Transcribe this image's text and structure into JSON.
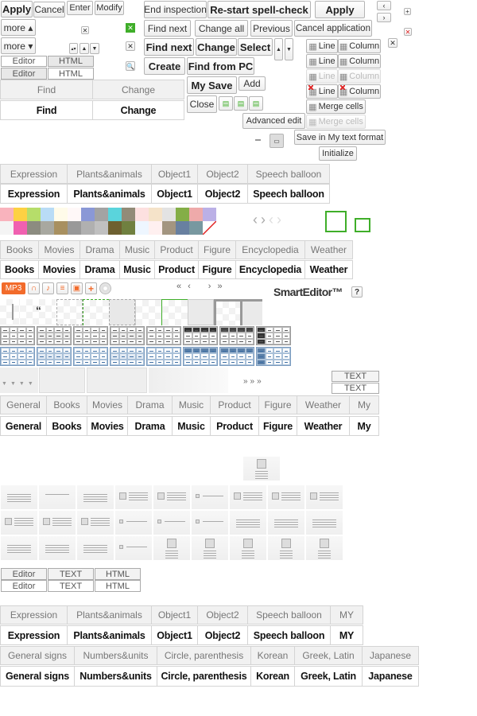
{
  "top_left": {
    "apply": "Apply",
    "cancel": "Cancel",
    "enter": "Enter",
    "modify": "Modify",
    "more_up": "more ▴",
    "more_down": "more ▾",
    "editor": "Editor",
    "html": "HTML"
  },
  "find_tabs": [
    "Find",
    "Change"
  ],
  "spell": {
    "end_inspection": "End inspection",
    "restart": "Re-start spell-check",
    "apply": "Apply",
    "find_next": "Find next",
    "change_all": "Change all",
    "previous": "Previous",
    "cancel_application": "Cancel application",
    "find_next_bold": "Find next",
    "change": "Change",
    "select": "Select",
    "create": "Create",
    "find_from_pc": "Find from PC",
    "my_save": "My Save",
    "add": "Add",
    "close": "Close",
    "advanced_edit": "Advanced edit",
    "save_my_format": "Save in My text format",
    "initialize": "Initialize"
  },
  "table_edit": {
    "line": "Line",
    "column": "Column",
    "merge_cells": "Merge cells"
  },
  "expression_tabs": [
    "Expression",
    "Plants&animals",
    "Object1",
    "Object2",
    "Speech balloon"
  ],
  "category_tabs": [
    "Books",
    "Movies",
    "Drama",
    "Music",
    "Product",
    "Figure",
    "Encyclopedia",
    "Weather"
  ],
  "media": {
    "mp3": "MP3",
    "logo": "SmartEditor™",
    "help": "?"
  },
  "pager": [
    "«",
    "‹",
    "›",
    "»"
  ],
  "text_buttons": [
    "TEXT",
    "TEXT"
  ],
  "general_tabs": [
    "General",
    "Books",
    "Movies",
    "Drama",
    "Music",
    "Product",
    "Figure",
    "Weather",
    "My"
  ],
  "mode_toggle": [
    "Editor",
    "TEXT",
    "HTML"
  ],
  "expression_tabs2": [
    "Expression",
    "Plants&animals",
    "Object1",
    "Object2",
    "Speech balloon",
    "MY"
  ],
  "sign_tabs": [
    "General signs",
    "Numbers&units",
    "Circle, parenthesis",
    "Korean",
    "Greek, Latin",
    "Japanese"
  ],
  "colors": {
    "accent_green": "#3fae29",
    "mp3_orange": "#f26b2b",
    "delete_red": "#e02020"
  },
  "swatches_top": [
    "#f9b3bd",
    "#fdd143",
    "#b6dd6a",
    "#b9dcf6",
    "#fffbe9",
    "#fff8f8",
    "#8a98d6",
    "#a3a3a3",
    "#5ad4dc",
    "#928b78",
    "#fde0e0",
    "#f5e3c9",
    "#e3e3e3",
    "#84ae47",
    "#eeaaaa",
    "#bbb0e6"
  ],
  "swatches_bottom": [
    "#f4f4f4",
    "#f060b0",
    "#8c8c80",
    "#a8a8a0",
    "#a89060",
    "#999999",
    "#b0b0b0",
    "#c0c0c0",
    "#6e6030",
    "#708040",
    "#eef6ff",
    "#fff0f0",
    "#a39580",
    "#6880a0",
    "#7898a0",
    "#ffffff"
  ]
}
